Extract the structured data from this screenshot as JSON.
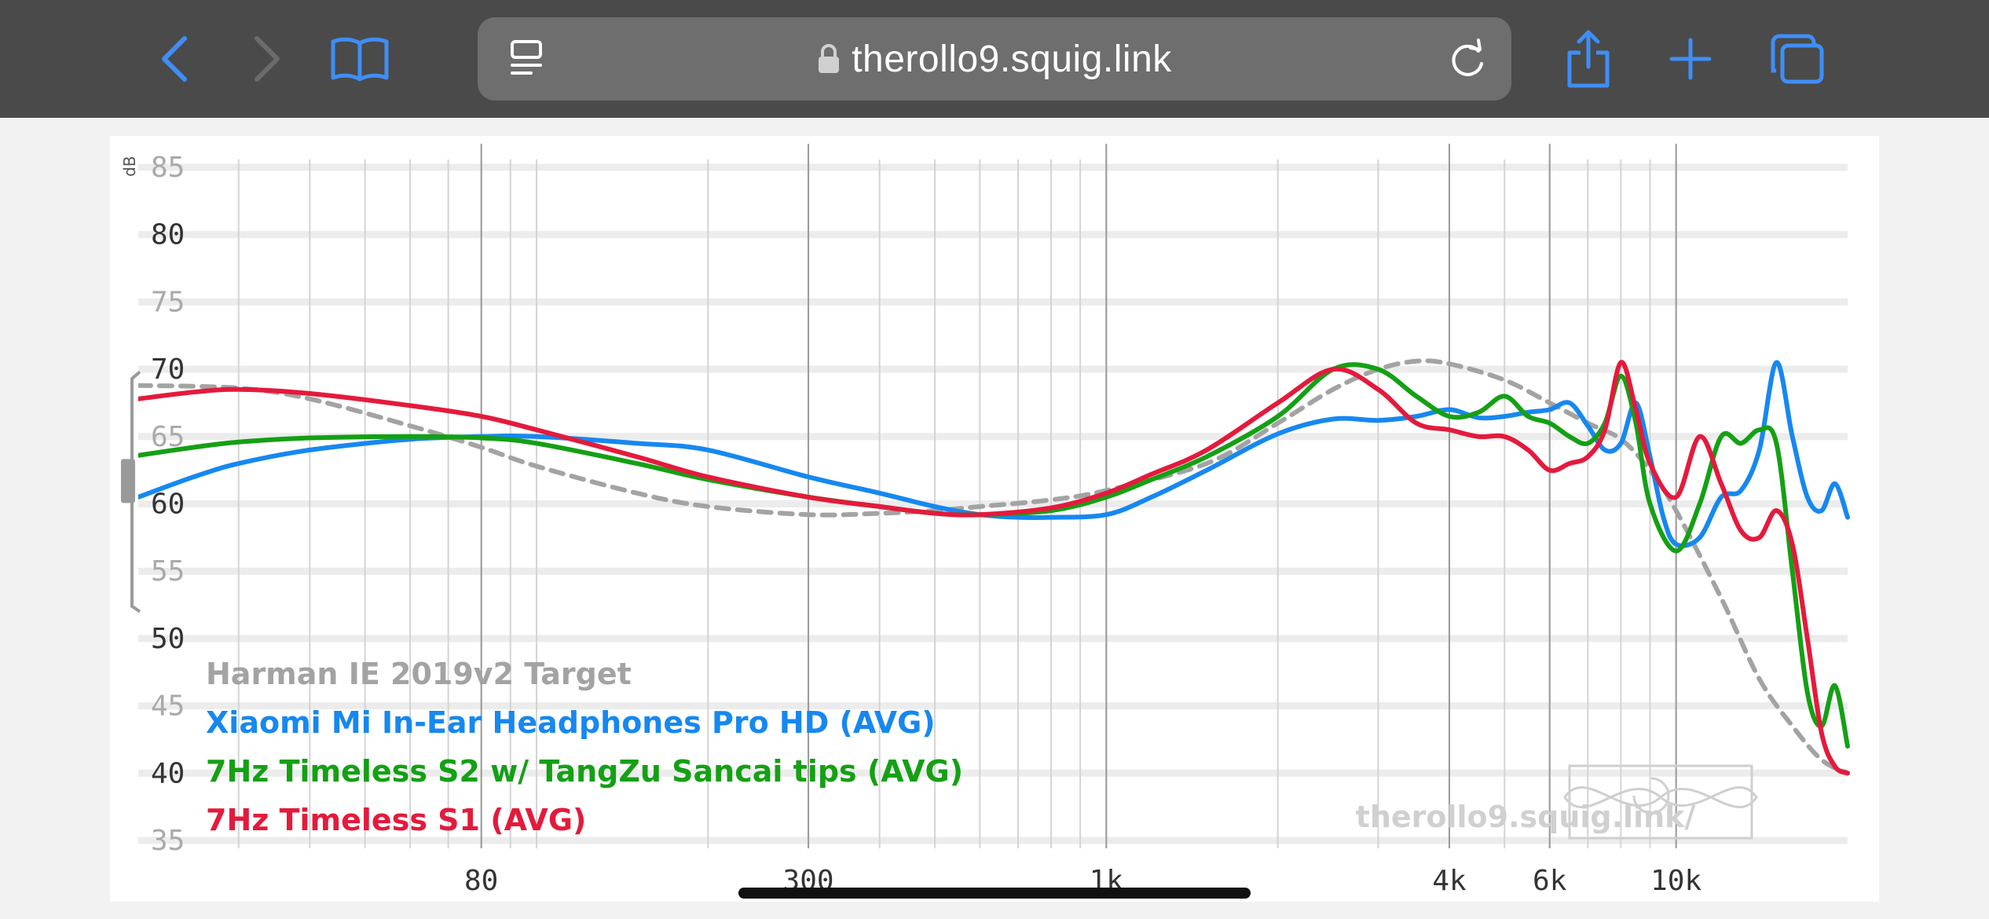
{
  "browser": {
    "url": "therollo9.squig.link",
    "icons": [
      "back-icon",
      "forward-icon",
      "bookmarks-icon",
      "reader-icon",
      "lock-icon",
      "reload-icon",
      "share-icon",
      "new-tab-icon",
      "tabs-icon"
    ]
  },
  "chart_data": {
    "type": "line",
    "x_scale": "log",
    "ylabel": "dB",
    "xlim": [
      20,
      20000
    ],
    "ylim": [
      35,
      85
    ],
    "y_ticks": [
      85,
      80,
      75,
      70,
      65,
      60,
      55,
      50,
      45,
      40,
      35
    ],
    "x_ticks": [
      {
        "value": 80,
        "label": "80"
      },
      {
        "value": 300,
        "label": "300"
      },
      {
        "value": 1000,
        "label": "1k"
      },
      {
        "value": 4000,
        "label": "4k"
      },
      {
        "value": 6000,
        "label": "6k"
      },
      {
        "value": 10000,
        "label": "10k"
      }
    ],
    "watermark": "therollo9.squig.link/",
    "series": [
      {
        "name": "Harman IE 2019v2 Target",
        "color": "#a3a3a3",
        "dashed": true,
        "points": [
          [
            20,
            68.8
          ],
          [
            30,
            68.6
          ],
          [
            40,
            67.8
          ],
          [
            60,
            65.8
          ],
          [
            80,
            64.2
          ],
          [
            100,
            62.8
          ],
          [
            150,
            60.8
          ],
          [
            200,
            59.8
          ],
          [
            300,
            59.2
          ],
          [
            400,
            59.3
          ],
          [
            500,
            59.5
          ],
          [
            600,
            59.8
          ],
          [
            800,
            60.3
          ],
          [
            1000,
            61.0
          ],
          [
            1500,
            63.0
          ],
          [
            2000,
            66.0
          ],
          [
            2500,
            68.5
          ],
          [
            3000,
            70.0
          ],
          [
            3500,
            70.6
          ],
          [
            4000,
            70.4
          ],
          [
            5000,
            69.2
          ],
          [
            6000,
            67.5
          ],
          [
            7000,
            66.0
          ],
          [
            8000,
            64.8
          ],
          [
            9000,
            62.5
          ],
          [
            10000,
            59.5
          ],
          [
            12000,
            53.0
          ],
          [
            14000,
            47.0
          ],
          [
            16000,
            43.5
          ],
          [
            18000,
            41.0
          ],
          [
            20000,
            40.0
          ]
        ]
      },
      {
        "name": "Xiaomi Mi In-Ear Headphones Pro HD (AVG)",
        "color": "#1688f0",
        "dashed": false,
        "points": [
          [
            20,
            60.5
          ],
          [
            25,
            62
          ],
          [
            30,
            63
          ],
          [
            40,
            64
          ],
          [
            60,
            64.8
          ],
          [
            80,
            65
          ],
          [
            100,
            65
          ],
          [
            150,
            64.5
          ],
          [
            200,
            64
          ],
          [
            300,
            62
          ],
          [
            400,
            60.8
          ],
          [
            500,
            59.8
          ],
          [
            600,
            59.2
          ],
          [
            700,
            59
          ],
          [
            800,
            59
          ],
          [
            1000,
            59.2
          ],
          [
            1200,
            60.5
          ],
          [
            1500,
            62.5
          ],
          [
            2000,
            65.2
          ],
          [
            2500,
            66.3
          ],
          [
            3000,
            66.2
          ],
          [
            3500,
            66.5
          ],
          [
            4000,
            67.0
          ],
          [
            4500,
            66.4
          ],
          [
            5000,
            66.5
          ],
          [
            5500,
            66.8
          ],
          [
            6000,
            67.0
          ],
          [
            6500,
            67.5
          ],
          [
            7000,
            65.8
          ],
          [
            7500,
            64.0
          ],
          [
            8000,
            64.5
          ],
          [
            8500,
            67.5
          ],
          [
            9000,
            63.5
          ],
          [
            9500,
            59.0
          ],
          [
            10000,
            57.0
          ],
          [
            11000,
            57.5
          ],
          [
            12000,
            60.5
          ],
          [
            13000,
            61.0
          ],
          [
            14000,
            64.0
          ],
          [
            15000,
            70.5
          ],
          [
            16000,
            65.0
          ],
          [
            17000,
            60.5
          ],
          [
            18000,
            59.5
          ],
          [
            19000,
            61.5
          ],
          [
            20000,
            59.0
          ]
        ]
      },
      {
        "name": "7Hz Timeless S2 w/ TangZu Sancai tips (AVG)",
        "color": "#14a014",
        "dashed": false,
        "points": [
          [
            20,
            63.6
          ],
          [
            25,
            64.2
          ],
          [
            30,
            64.6
          ],
          [
            40,
            64.9
          ],
          [
            60,
            65
          ],
          [
            80,
            64.9
          ],
          [
            100,
            64.5
          ],
          [
            150,
            63
          ],
          [
            200,
            61.8
          ],
          [
            300,
            60.5
          ],
          [
            400,
            59.8
          ],
          [
            500,
            59.3
          ],
          [
            600,
            59.2
          ],
          [
            800,
            59.5
          ],
          [
            1000,
            60.5
          ],
          [
            1200,
            61.8
          ],
          [
            1500,
            63.5
          ],
          [
            2000,
            66.5
          ],
          [
            2500,
            70.0
          ],
          [
            3000,
            70.0
          ],
          [
            3500,
            68.0
          ],
          [
            4000,
            66.5
          ],
          [
            4500,
            66.8
          ],
          [
            5000,
            68.0
          ],
          [
            5500,
            66.5
          ],
          [
            6000,
            66.0
          ],
          [
            6500,
            65.0
          ],
          [
            7000,
            64.5
          ],
          [
            7500,
            66.0
          ],
          [
            8000,
            69.5
          ],
          [
            8500,
            66.0
          ],
          [
            9000,
            60.0
          ],
          [
            10000,
            56.5
          ],
          [
            11000,
            60.0
          ],
          [
            12000,
            65.0
          ],
          [
            13000,
            64.5
          ],
          [
            14000,
            65.5
          ],
          [
            15000,
            64.5
          ],
          [
            16000,
            55.0
          ],
          [
            17000,
            46.0
          ],
          [
            18000,
            43.5
          ],
          [
            19000,
            46.5
          ],
          [
            20000,
            42.0
          ]
        ]
      },
      {
        "name": "7Hz Timeless S1 (AVG)",
        "color": "#e41a3c",
        "dashed": false,
        "points": [
          [
            20,
            67.8
          ],
          [
            25,
            68.3
          ],
          [
            30,
            68.5
          ],
          [
            40,
            68.2
          ],
          [
            60,
            67.3
          ],
          [
            80,
            66.5
          ],
          [
            100,
            65.5
          ],
          [
            150,
            63.5
          ],
          [
            200,
            62
          ],
          [
            300,
            60.5
          ],
          [
            400,
            59.8
          ],
          [
            500,
            59.3
          ],
          [
            600,
            59.2
          ],
          [
            800,
            59.7
          ],
          [
            1000,
            60.8
          ],
          [
            1200,
            62.2
          ],
          [
            1500,
            64
          ],
          [
            2000,
            67.5
          ],
          [
            2500,
            70.0
          ],
          [
            3000,
            68.5
          ],
          [
            3500,
            66.0
          ],
          [
            4000,
            65.5
          ],
          [
            4500,
            65.0
          ],
          [
            5000,
            65.0
          ],
          [
            5500,
            64.0
          ],
          [
            6000,
            62.5
          ],
          [
            6500,
            63.0
          ],
          [
            7000,
            63.5
          ],
          [
            7500,
            65.5
          ],
          [
            8000,
            70.5
          ],
          [
            8500,
            67.0
          ],
          [
            9000,
            63.0
          ],
          [
            10000,
            60.5
          ],
          [
            11000,
            65.0
          ],
          [
            12000,
            61.5
          ],
          [
            13000,
            58.0
          ],
          [
            14000,
            57.5
          ],
          [
            15000,
            59.5
          ],
          [
            16000,
            57.0
          ],
          [
            17000,
            50.0
          ],
          [
            18000,
            43.0
          ],
          [
            19000,
            40.5
          ],
          [
            20000,
            40.0
          ]
        ]
      }
    ]
  }
}
